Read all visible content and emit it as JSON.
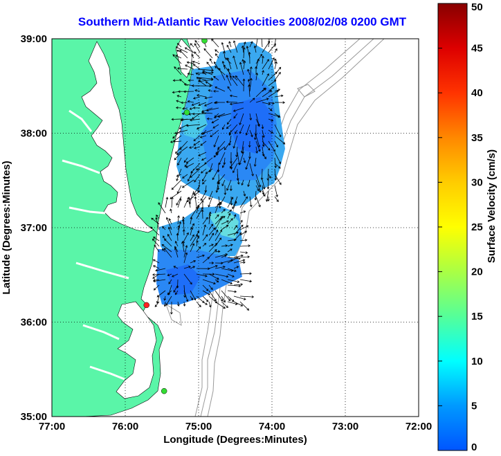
{
  "title": "Southern Mid-Atlantic Raw Velocities 2008/02/08 0200 GMT",
  "map": {
    "xlabel": "Longitude (Degrees:Minutes)",
    "ylabel": "Latitude (Degrees:Minutes)",
    "x_ticks": [
      "77:00",
      "76:00",
      "75:00",
      "74:00",
      "73:00",
      "72:00"
    ],
    "y_ticks": [
      "39:00",
      "38:00",
      "37:00",
      "36:00",
      "35:00"
    ],
    "lon_range": [
      -77,
      -72
    ],
    "lat_range": [
      35,
      39
    ],
    "grid": true,
    "land_color": "#5af5a8",
    "contour_color": "#999999",
    "stations": [
      {
        "lon": -74.92,
        "lat": 38.98,
        "color": "#33dd33"
      },
      {
        "lon": -75.16,
        "lat": 38.22,
        "color": "#33dd33"
      },
      {
        "lon": -75.71,
        "lat": 36.18,
        "color": "#ff2222"
      },
      {
        "lon": -75.47,
        "lat": 35.27,
        "color": "#33dd33"
      }
    ]
  },
  "colorbar": {
    "label": "Surface Velocity (cm/s)",
    "ticks": [
      "0",
      "5",
      "10",
      "15",
      "20",
      "25",
      "30",
      "35",
      "40",
      "45",
      "50"
    ],
    "range": [
      0,
      50
    ],
    "unit": "cm/s"
  }
}
